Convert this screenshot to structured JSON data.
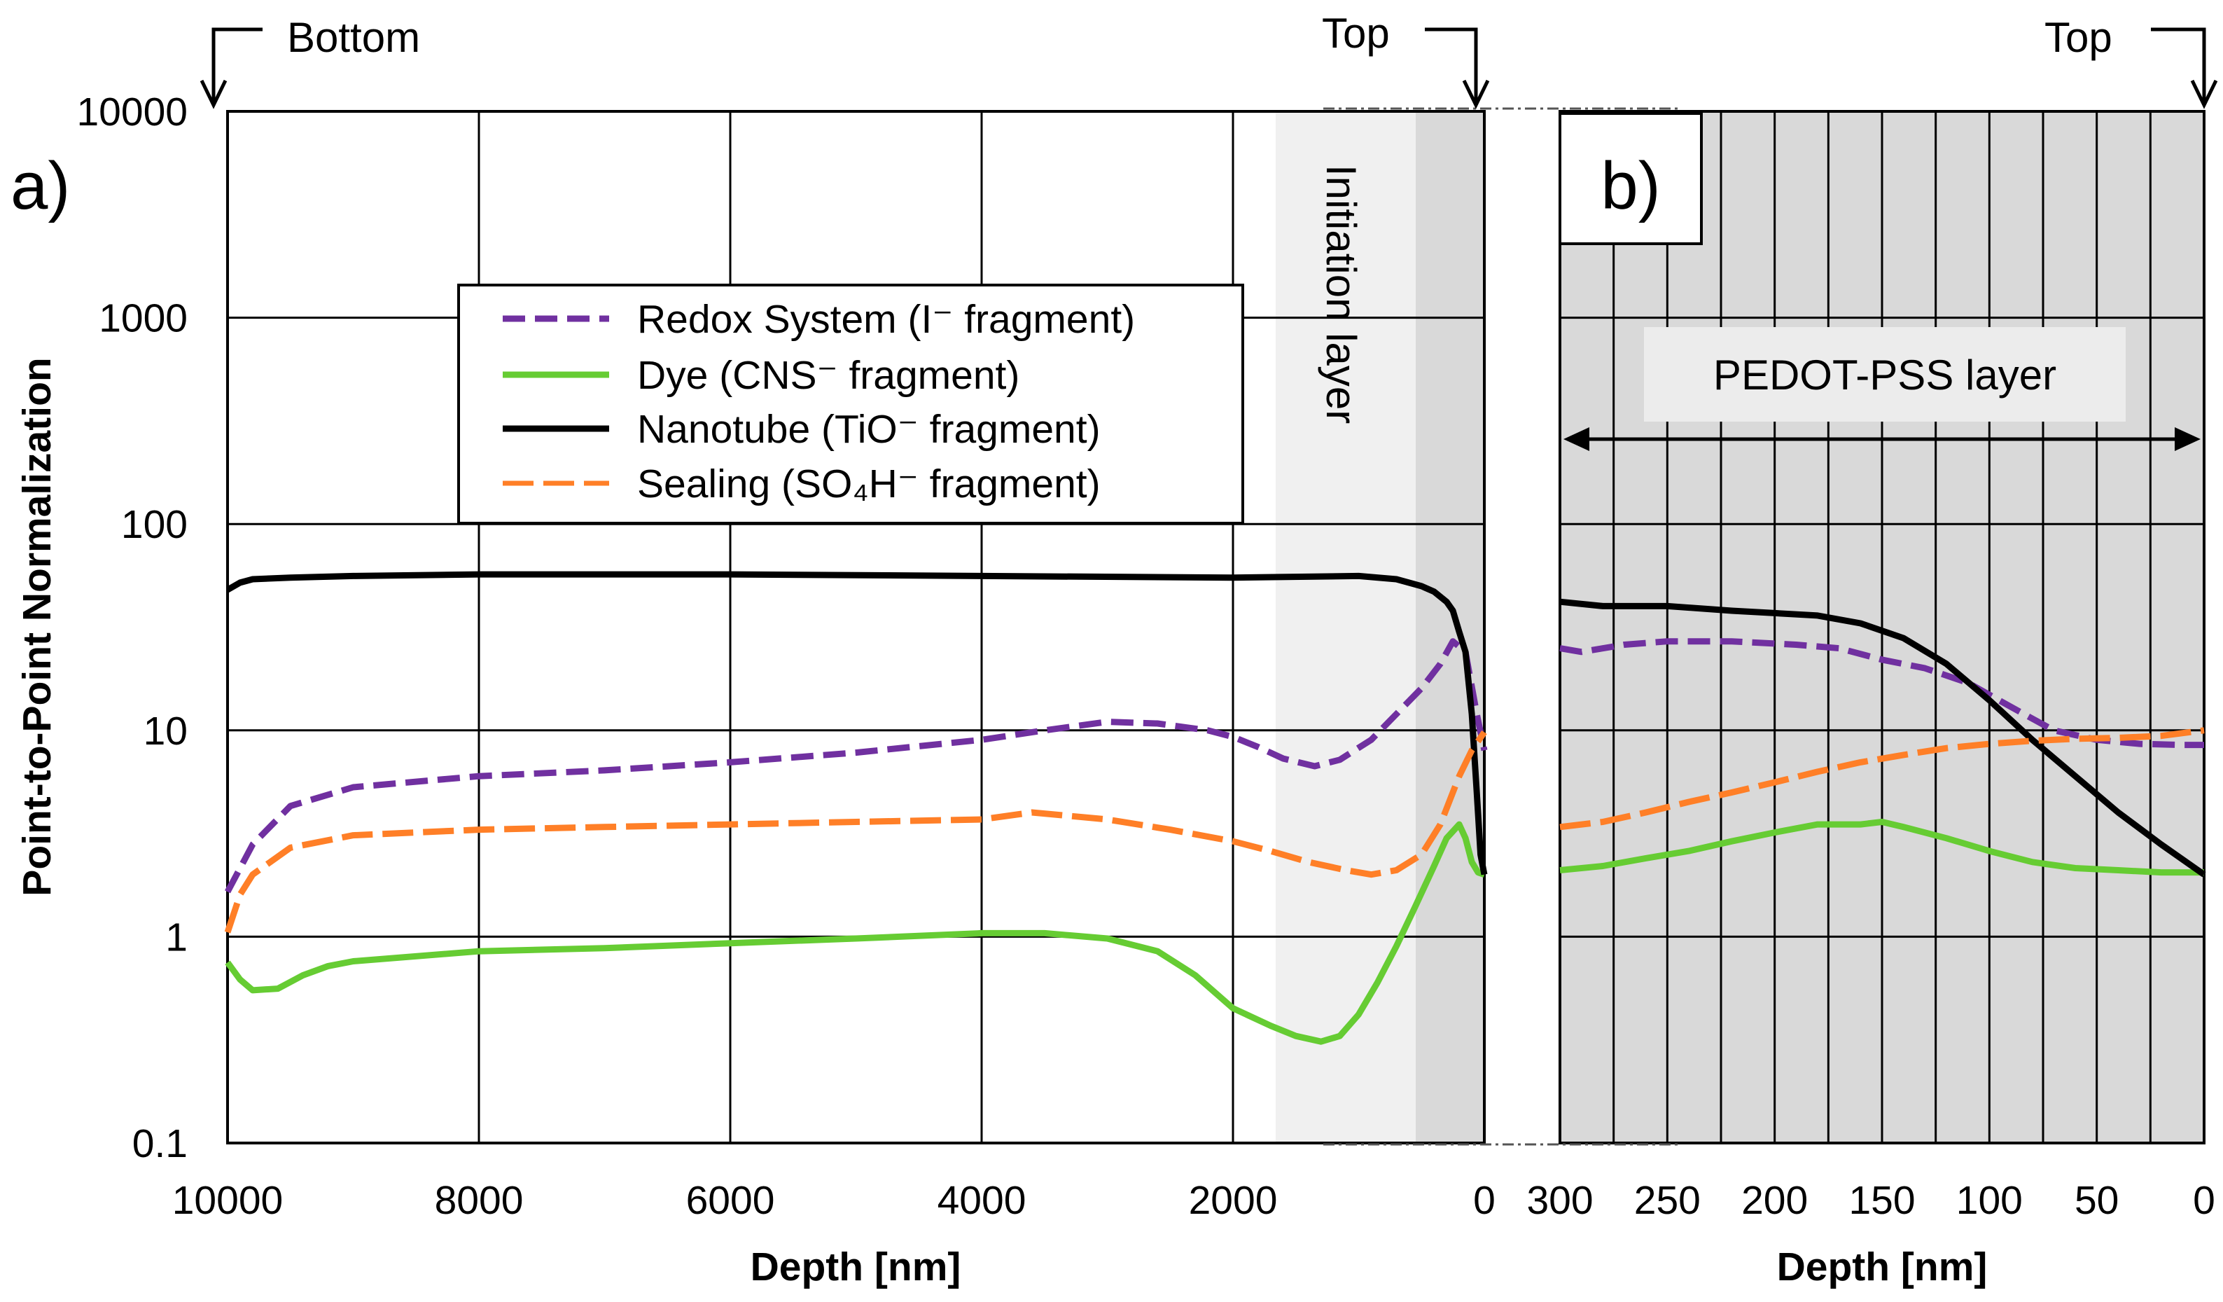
{
  "chart_data": [
    {
      "panel": "a)",
      "type": "line",
      "xlabel": "Depth [nm]",
      "ylabel": "Point-to-Point Normalization",
      "xlim": [
        10000,
        0
      ],
      "ylim": [
        0.1,
        10000
      ],
      "yscale": "log",
      "x_ticks": [
        "10000",
        "8000",
        "6000",
        "4000",
        "2000",
        "0"
      ],
      "y_ticks": [
        "10000",
        "1000",
        "100",
        "10",
        "1",
        "0.1"
      ],
      "y_tick_values": [
        10000,
        1000,
        100,
        10,
        1,
        0.1
      ],
      "annotations": {
        "bottom": "Bottom",
        "top": "Top",
        "initiation": "Initiation layer"
      },
      "shaded_regions": [
        {
          "name": "initiation-layer",
          "from": 1650,
          "to": 530,
          "color": "#f0f0f0"
        },
        {
          "name": "top-layer",
          "from": 530,
          "to": 0,
          "color": "#d9d9d9"
        }
      ],
      "legend": [
        "Redox System (I⁻ fragment)",
        "Dye (CNS⁻ fragment)",
        "Nanotube (TiO⁻ fragment)",
        "Sealing (SO₄H⁻ fragment)"
      ],
      "series": [
        {
          "name": "Redox System (I⁻ fragment)",
          "color": "#7030a0",
          "dash": "dashed",
          "x": [
            10000,
            9800,
            9500,
            9000,
            8000,
            7000,
            6000,
            5000,
            4000,
            3500,
            3000,
            2600,
            2200,
            2000,
            1800,
            1600,
            1350,
            1150,
            900,
            700,
            500,
            350,
            250,
            150,
            60,
            0
          ],
          "y": [
            1.65,
            2.8,
            4.3,
            5.3,
            6,
            6.4,
            7,
            7.8,
            9,
            10,
            11,
            10.8,
            10,
            9.3,
            8.3,
            7.3,
            6.7,
            7.2,
            9,
            12,
            16,
            21,
            27,
            24,
            12,
            8
          ]
        },
        {
          "name": "Dye (CNS⁻ fragment)",
          "color": "#66cc33",
          "dash": "solid",
          "x": [
            10000,
            9900,
            9800,
            9600,
            9400,
            9200,
            9000,
            8000,
            7000,
            6000,
            5000,
            4000,
            3500,
            3000,
            2600,
            2300,
            2000,
            1700,
            1500,
            1300,
            1150,
            1000,
            850,
            700,
            550,
            400,
            300,
            200,
            150,
            100,
            50,
            0
          ],
          "y": [
            0.75,
            0.62,
            0.55,
            0.56,
            0.65,
            0.72,
            0.76,
            0.85,
            0.88,
            0.93,
            0.98,
            1.04,
            1.04,
            0.98,
            0.85,
            0.65,
            0.45,
            0.37,
            0.33,
            0.31,
            0.33,
            0.42,
            0.6,
            0.9,
            1.4,
            2.2,
            3,
            3.5,
            3,
            2.3,
            2.05,
            2
          ]
        },
        {
          "name": "Nanotube (TiO⁻ fragment)",
          "color": "#000000",
          "dash": "solid",
          "x": [
            10000,
            9900,
            9800,
            9500,
            9000,
            8000,
            6000,
            4000,
            2000,
            1000,
            700,
            500,
            400,
            300,
            250,
            200,
            150,
            100,
            60,
            30,
            0
          ],
          "y": [
            48,
            52,
            54,
            55,
            56,
            57,
            57,
            56,
            55,
            56,
            54,
            50,
            47,
            42,
            38,
            30,
            24,
            12,
            5,
            2.5,
            2
          ]
        },
        {
          "name": "Sealing (SO₄H⁻ fragment)",
          "color": "#ff7f27",
          "dash": "longdash",
          "x": [
            10000,
            9900,
            9800,
            9500,
            9000,
            8000,
            7000,
            6000,
            5000,
            4000,
            3600,
            3000,
            2500,
            2000,
            1700,
            1400,
            1100,
            900,
            700,
            500,
            350,
            200,
            100,
            0
          ],
          "y": [
            1.05,
            1.6,
            2,
            2.7,
            3.1,
            3.3,
            3.4,
            3.5,
            3.6,
            3.7,
            4,
            3.7,
            3.3,
            2.9,
            2.6,
            2.3,
            2.1,
            2,
            2.1,
            2.5,
            3.5,
            6,
            8,
            9.8
          ]
        }
      ]
    },
    {
      "panel": "b)",
      "type": "line",
      "xlabel": "Depth [nm]",
      "xlim": [
        300,
        0
      ],
      "ylim": [
        0.1,
        10000
      ],
      "yscale": "log",
      "x_ticks": [
        "300",
        "250",
        "200",
        "150",
        "100",
        "50",
        "0"
      ],
      "x_tick_values": [
        300,
        250,
        200,
        150,
        100,
        50,
        0
      ],
      "annotations": {
        "top": "Top",
        "layer": "PEDOT-PSS layer"
      },
      "series": [
        {
          "name": "Redox System (I⁻ fragment)",
          "color": "#7030a0",
          "dash": "dashed",
          "x": [
            300,
            290,
            270,
            250,
            220,
            190,
            170,
            150,
            130,
            110,
            90,
            70,
            50,
            30,
            10,
            0
          ],
          "y": [
            25,
            24,
            26,
            27,
            27,
            26,
            25,
            22,
            20,
            17,
            13,
            10,
            9,
            8.6,
            8.5,
            8.5
          ]
        },
        {
          "name": "Dye (CNS⁻ fragment)",
          "color": "#66cc33",
          "dash": "solid",
          "x": [
            300,
            280,
            260,
            240,
            220,
            200,
            180,
            160,
            150,
            140,
            120,
            100,
            80,
            60,
            40,
            20,
            0
          ],
          "y": [
            2.1,
            2.2,
            2.4,
            2.6,
            2.9,
            3.2,
            3.5,
            3.5,
            3.6,
            3.4,
            3,
            2.6,
            2.3,
            2.15,
            2.1,
            2.05,
            2.05
          ]
        },
        {
          "name": "Nanotube (TiO⁻ fragment)",
          "color": "#000000",
          "dash": "solid",
          "x": [
            300,
            280,
            250,
            220,
            200,
            180,
            160,
            140,
            120,
            100,
            80,
            60,
            40,
            20,
            0
          ],
          "y": [
            42,
            40,
            40,
            38,
            37,
            36,
            33,
            28,
            21,
            14,
            9,
            6,
            4,
            2.8,
            2
          ]
        },
        {
          "name": "Sealing (SO₄H⁻ fragment)",
          "color": "#ff7f27",
          "dash": "longdash",
          "x": [
            300,
            280,
            260,
            240,
            220,
            200,
            180,
            160,
            140,
            120,
            100,
            80,
            60,
            40,
            20,
            0
          ],
          "y": [
            3.4,
            3.6,
            4,
            4.5,
            5,
            5.6,
            6.3,
            7,
            7.6,
            8.2,
            8.6,
            8.9,
            9.1,
            9.2,
            9.4,
            10
          ]
        }
      ]
    }
  ]
}
